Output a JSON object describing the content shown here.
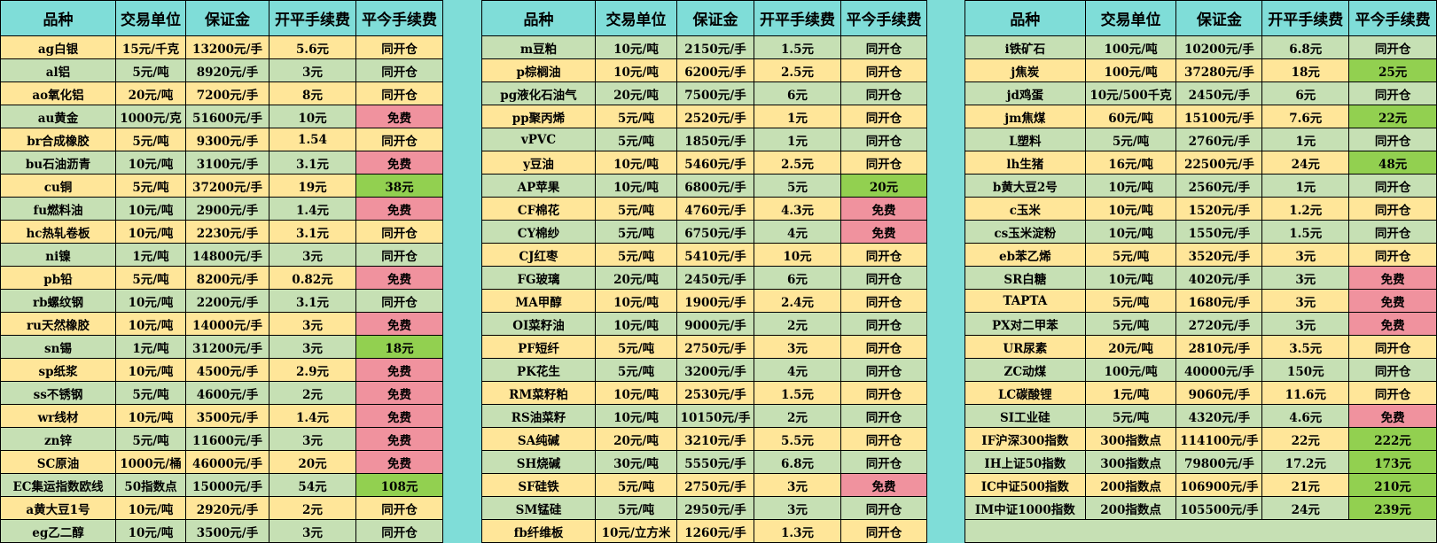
{
  "colors": {
    "header": "#7FDDD8",
    "row_yellow": "#FFE699",
    "row_green": "#C6E0B4",
    "free": "#F0929E",
    "fee_positive": "#92D050"
  },
  "headers": [
    "品种",
    "交易单位",
    "保证金",
    "开平手续费",
    "平今手续费"
  ],
  "tables": [
    {
      "first_row_color": "yellow",
      "rows": [
        [
          "ag白银",
          "15元/千克",
          "13200元/手",
          "5.6元",
          "同开仓"
        ],
        [
          "al铝",
          "5元/吨",
          "8920元/手",
          "3元",
          "同开仓"
        ],
        [
          "ao氧化铝",
          "20元/吨",
          "7200元/手",
          "8元",
          "同开仓"
        ],
        [
          "au黄金",
          "1000元/克",
          "51600元/手",
          "10元",
          "免费"
        ],
        [
          "br合成橡胶",
          "5元/吨",
          "9300元/手",
          "1.54",
          "同开仓"
        ],
        [
          "bu石油沥青",
          "10元/吨",
          "3100元/手",
          "3.1元",
          "免费"
        ],
        [
          "cu铜",
          "5元/吨",
          "37200元/手",
          "19元",
          "38元"
        ],
        [
          "fu燃料油",
          "10元/吨",
          "2900元/手",
          "1.4元",
          "免费"
        ],
        [
          "hc热轧卷板",
          "10元/吨",
          "2230元/手",
          "3.1元",
          "同开仓"
        ],
        [
          "ni镍",
          "1元/吨",
          "14800元/手",
          "3元",
          "同开仓"
        ],
        [
          "pb铅",
          "5元/吨",
          "8200元/手",
          "0.82元",
          "免费"
        ],
        [
          "rb螺纹钢",
          "10元/吨",
          "2200元/手",
          "3.1元",
          "同开仓"
        ],
        [
          "ru天然橡胶",
          "10元/吨",
          "14000元/手",
          "3元",
          "免费"
        ],
        [
          "sn锡",
          "1元/吨",
          "31200元/手",
          "3元",
          "18元"
        ],
        [
          "sp纸浆",
          "10元/吨",
          "4500元/手",
          "2.9元",
          "免费"
        ],
        [
          "ss不锈钢",
          "5元/吨",
          "4600元/手",
          "2元",
          "免费"
        ],
        [
          "wr线材",
          "10元/吨",
          "3500元/手",
          "1.4元",
          "免费"
        ],
        [
          "zn锌",
          "5元/吨",
          "11600元/手",
          "3元",
          "免费"
        ],
        [
          "SC原油",
          "1000元/桶",
          "46000元/手",
          "20元",
          "免费"
        ],
        [
          "EC集运指数欧线",
          "50指数点",
          "15000元/手",
          "54元",
          "108元"
        ],
        [
          "a黄大豆1号",
          "10元/吨",
          "2920元/手",
          "2元",
          "同开仓"
        ],
        [
          "eg乙二醇",
          "10元/吨",
          "3500元/手",
          "3元",
          "同开仓"
        ]
      ]
    },
    {
      "first_row_color": "green",
      "rows": [
        [
          "m豆粕",
          "10元/吨",
          "2150元/手",
          "1.5元",
          "同开仓"
        ],
        [
          "p棕榈油",
          "10元/吨",
          "6200元/手",
          "2.5元",
          "同开仓"
        ],
        [
          "pg液化石油气",
          "20元/吨",
          "7500元/手",
          "6元",
          "同开仓"
        ],
        [
          "pp聚丙烯",
          "5元/吨",
          "2520元/手",
          "1元",
          "同开仓"
        ],
        [
          "vPVC",
          "5元/吨",
          "1850元/手",
          "1元",
          "同开仓"
        ],
        [
          "y豆油",
          "10元/吨",
          "5460元/手",
          "2.5元",
          "同开仓"
        ],
        [
          "AP苹果",
          "10元/吨",
          "6800元/手",
          "5元",
          "20元"
        ],
        [
          "CF棉花",
          "5元/吨",
          "4760元/手",
          "4.3元",
          "免费"
        ],
        [
          "CY棉纱",
          "5元/吨",
          "6750元/手",
          "4元",
          "免费"
        ],
        [
          "CJ红枣",
          "5元/吨",
          "5410元/手",
          "10元",
          "同开仓"
        ],
        [
          "FG玻璃",
          "20元/吨",
          "2450元/手",
          "6元",
          "同开仓"
        ],
        [
          "MA甲醇",
          "10元/吨",
          "1900元/手",
          "2.4元",
          "同开仓"
        ],
        [
          "OI菜籽油",
          "10元/吨",
          "9000元/手",
          "2元",
          "同开仓"
        ],
        [
          "PF短纤",
          "5元/吨",
          "2750元/手",
          "3元",
          "同开仓"
        ],
        [
          "PK花生",
          "5元/吨",
          "3200元/手",
          "4元",
          "同开仓"
        ],
        [
          "RM菜籽粕",
          "10元/吨",
          "2530元/手",
          "1.5元",
          "同开仓"
        ],
        [
          "RS油菜籽",
          "10元/吨",
          "10150元/手",
          "2元",
          "同开仓"
        ],
        [
          "SA纯碱",
          "20元/吨",
          "3210元/手",
          "5.5元",
          "同开仓"
        ],
        [
          "SH烧碱",
          "30元/吨",
          "5550元/手",
          "6.8元",
          "同开仓"
        ],
        [
          "SF硅铁",
          "5元/吨",
          "2750元/手",
          "3元",
          "免费"
        ],
        [
          "SM锰硅",
          "5元/吨",
          "2950元/手",
          "3元",
          "同开仓"
        ],
        [
          "fb纤维板",
          "10元/立方米",
          "1260元/手",
          "1.3元",
          "同开仓"
        ]
      ]
    },
    {
      "first_row_color": "green",
      "rows": [
        [
          "i铁矿石",
          "100元/吨",
          "10200元/手",
          "6.8元",
          "同开仓"
        ],
        [
          "j焦炭",
          "100元/吨",
          "37280元/手",
          "18元",
          "25元"
        ],
        [
          "jd鸡蛋",
          "10元/500千克",
          "2450元/手",
          "6元",
          "同开仓"
        ],
        [
          "jm焦煤",
          "60元/吨",
          "15100元/手",
          "7.6元",
          "22元"
        ],
        [
          "L塑料",
          "5元/吨",
          "2760元/手",
          "1元",
          "同开仓"
        ],
        [
          "lh生猪",
          "16元/吨",
          "22500元/手",
          "24元",
          "48元"
        ],
        [
          "b黄大豆2号",
          "10元/吨",
          "2560元/手",
          "1元",
          "同开仓"
        ],
        [
          "c玉米",
          "10元/吨",
          "1520元/手",
          "1.2元",
          "同开仓"
        ],
        [
          "cs玉米淀粉",
          "10元/吨",
          "1550元/手",
          "1.5元",
          "同开仓"
        ],
        [
          "eb苯乙烯",
          "5元/吨",
          "3520元/手",
          "3元",
          "同开仓"
        ],
        [
          "SR白糖",
          "10元/吨",
          "4020元/手",
          "3元",
          "免费"
        ],
        [
          "TAPTA",
          "5元/吨",
          "1680元/手",
          "3元",
          "免费"
        ],
        [
          "PX对二甲苯",
          "5元/吨",
          "2720元/手",
          "3元",
          "免费"
        ],
        [
          "UR尿素",
          "20元/吨",
          "2810元/手",
          "3.5元",
          "同开仓"
        ],
        [
          "ZC动煤",
          "100元/吨",
          "40000元/手",
          "150元",
          "同开仓"
        ],
        [
          "LC碳酸锂",
          "1元/吨",
          "9060元/手",
          "11.6元",
          "同开仓"
        ],
        [
          "SI工业硅",
          "5元/吨",
          "4320元/手",
          "4.6元",
          "免费"
        ],
        [
          "IF沪深300指数",
          "300指数点",
          "114100元/手",
          "22元",
          "222元"
        ],
        [
          "IH上证50指数",
          "300指数点",
          "79800元/手",
          "17.2元",
          "173元"
        ],
        [
          "IC中证500指数",
          "200指数点",
          "106900元/手",
          "21元",
          "210元"
        ],
        [
          "IM中证1000指数",
          "200指数点",
          "105500元/手",
          "24元",
          "239元"
        ]
      ]
    }
  ],
  "labels": {
    "same_as_open": "同开仓",
    "free": "免费"
  }
}
